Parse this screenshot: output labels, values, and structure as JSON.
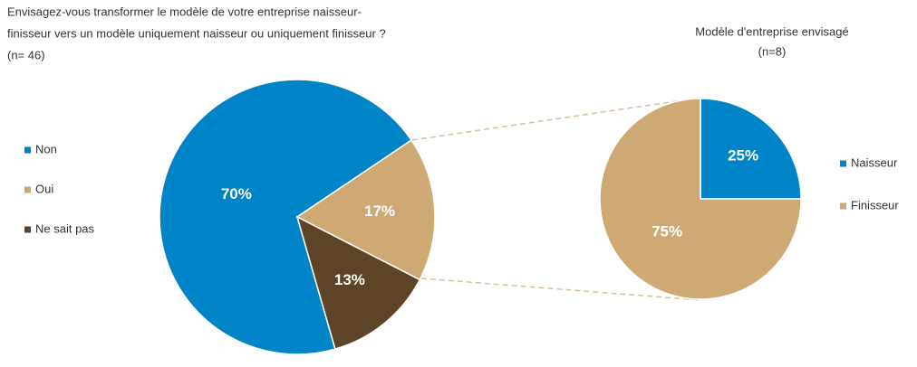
{
  "chart_data": [
    {
      "type": "pie",
      "title": [
        "Envisagez-vous transformer le modèle de votre entreprise naisseur-",
        "finisseur vers un modèle uniquement naisseur ou uniquement finisseur ?"
      ],
      "subtitle": "(n= 46)",
      "categories": [
        "Non",
        "Oui",
        "Ne sait pas"
      ],
      "values": [
        70,
        17,
        13
      ],
      "value_labels": [
        "70%",
        "17%",
        "13%"
      ],
      "colors": [
        "#0084c8",
        "#cfa974",
        "#5e4426"
      ],
      "legend": "left"
    },
    {
      "type": "pie",
      "title": [
        "Modèle d'entreprise envisagé"
      ],
      "subtitle": "(n=8)",
      "categories": [
        "Naisseur",
        "Finisseur"
      ],
      "values": [
        25,
        75
      ],
      "value_labels": [
        "25%",
        "75%"
      ],
      "colors": [
        "#0084c8",
        "#cfa974"
      ],
      "legend": "right"
    }
  ]
}
